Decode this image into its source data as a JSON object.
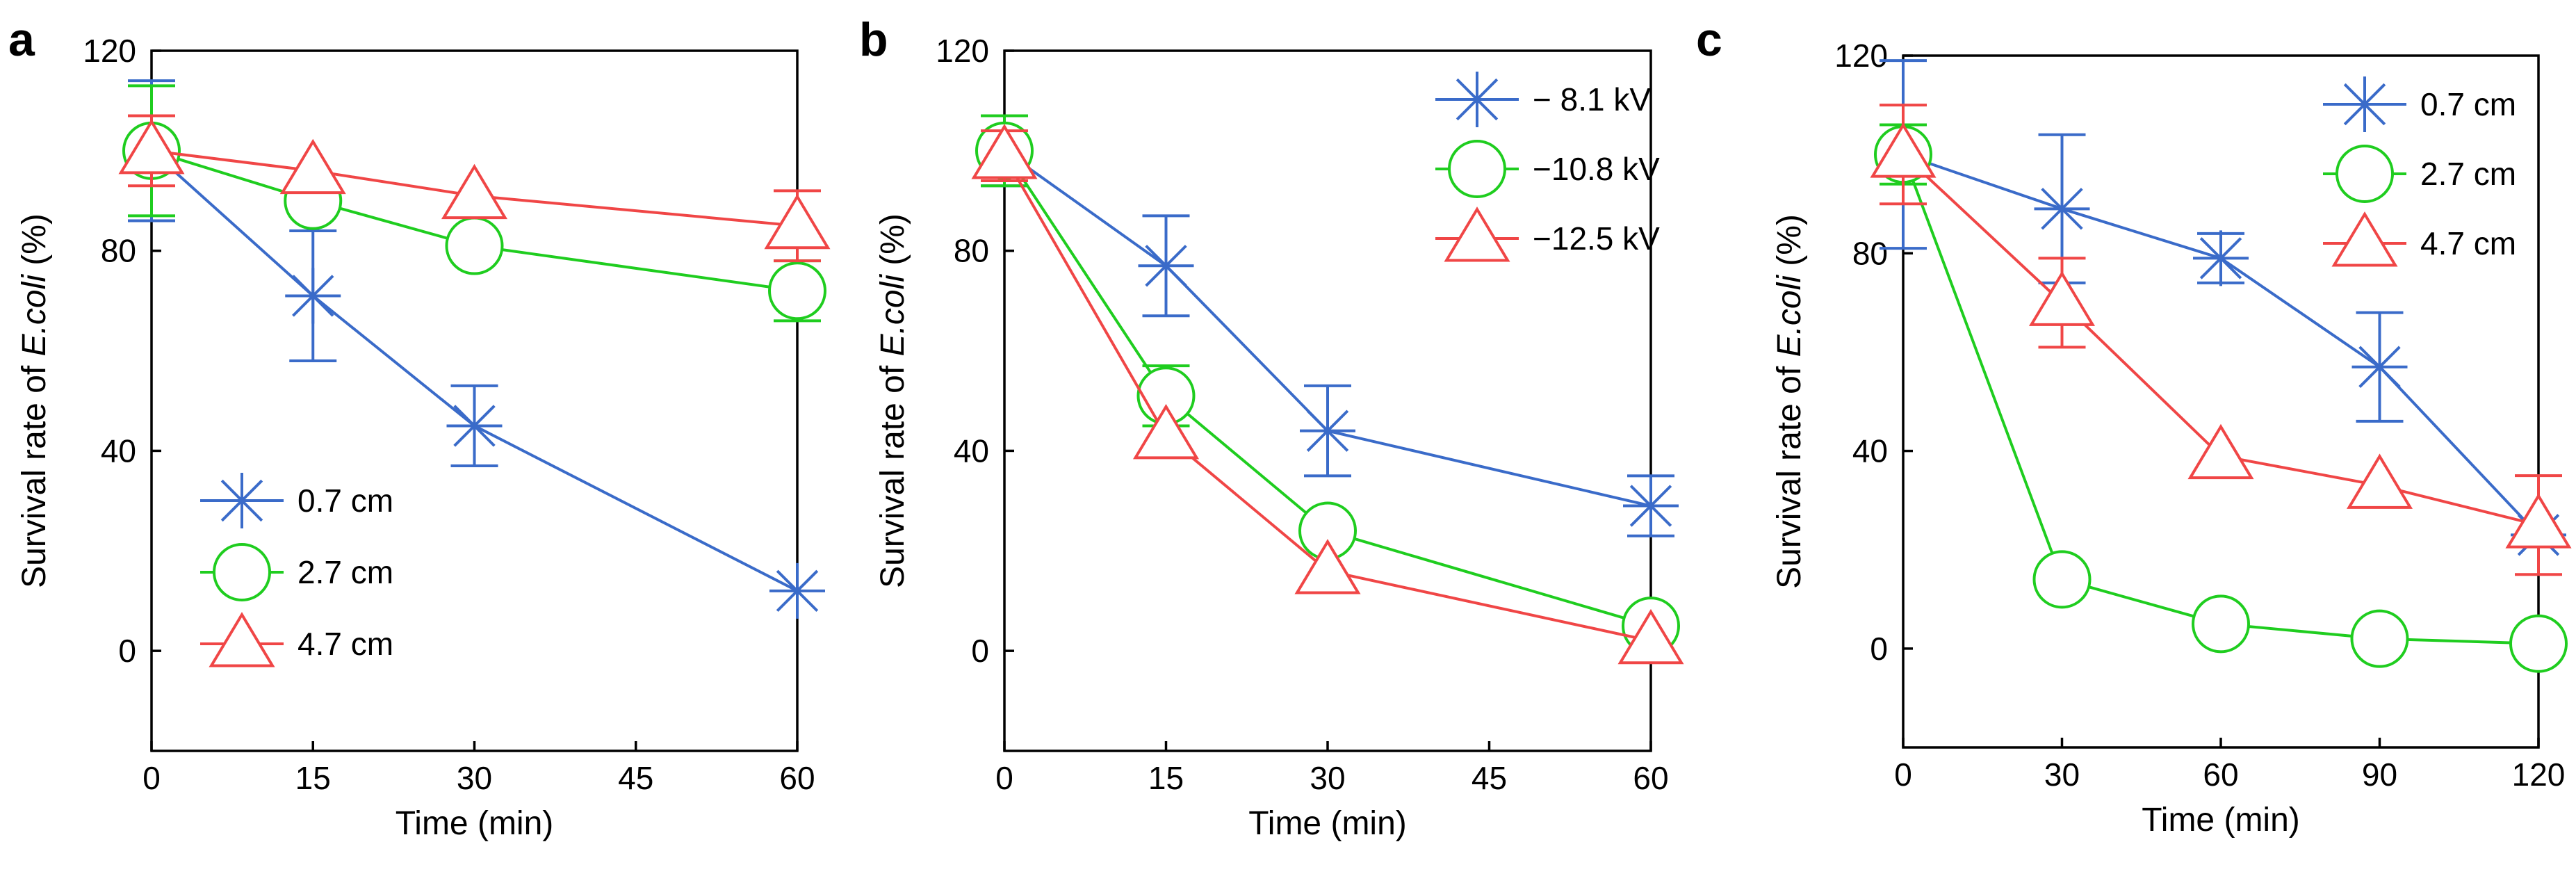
{
  "colors": {
    "blue": "#3a6bc9",
    "green": "#1fcd1f",
    "red": "#f04646"
  },
  "chart_data": [
    {
      "type": "line",
      "panel": "a",
      "xlabel": "Time (min)",
      "ylabel_prefix": "Survival rate of ",
      "ylabel_italic": "E.coli",
      "ylabel_suffix": " (%)",
      "xlim": [
        0,
        60
      ],
      "ylim": [
        -20,
        120
      ],
      "xticks": [
        0,
        15,
        30,
        45,
        60
      ],
      "yticks": [
        0,
        40,
        80,
        120
      ],
      "legend_position": "bottom-left",
      "series": [
        {
          "name": "0.7 cm",
          "color": "blue",
          "marker": "asterisk",
          "x": [
            0,
            15,
            30,
            60
          ],
          "y": [
            100,
            71,
            45,
            12
          ],
          "err": [
            14,
            13,
            8,
            0
          ]
        },
        {
          "name": "2.7 cm",
          "color": "green",
          "marker": "circle",
          "x": [
            0,
            15,
            30,
            60
          ],
          "y": [
            100,
            90,
            81,
            72
          ],
          "err": [
            13,
            0,
            0,
            6
          ]
        },
        {
          "name": "4.7 cm",
          "color": "red",
          "marker": "triangle",
          "x": [
            0,
            15,
            30,
            60
          ],
          "y": [
            100,
            96,
            91,
            85
          ],
          "err": [
            7,
            0,
            0,
            7
          ]
        }
      ]
    },
    {
      "type": "line",
      "panel": "b",
      "xlabel": "Time (min)",
      "ylabel_prefix": "Survival rate of ",
      "ylabel_italic": "E.coli",
      "ylabel_suffix": " (%)",
      "xlim": [
        0,
        60
      ],
      "ylim": [
        -20,
        120
      ],
      "xticks": [
        0,
        15,
        30,
        45,
        60
      ],
      "yticks": [
        0,
        40,
        80,
        120
      ],
      "legend_position": "top-right",
      "series": [
        {
          "name": "− 8.1 kV",
          "color": "blue",
          "marker": "asterisk",
          "x": [
            0,
            15,
            30,
            60
          ],
          "y": [
            100,
            77,
            44,
            29
          ],
          "err": [
            7,
            10,
            9,
            6
          ]
        },
        {
          "name": "−10.8 kV",
          "color": "green",
          "marker": "circle",
          "x": [
            0,
            15,
            30,
            60
          ],
          "y": [
            100,
            51,
            24,
            5
          ],
          "err": [
            7,
            6,
            0,
            0
          ]
        },
        {
          "name": "−12.5 kV",
          "color": "red",
          "marker": "triangle",
          "x": [
            0,
            15,
            30,
            60
          ],
          "y": [
            99,
            43,
            16,
            2
          ],
          "err": [
            5,
            0,
            0,
            0
          ]
        }
      ]
    },
    {
      "type": "line",
      "panel": "c",
      "xlabel": "Time (min)",
      "ylabel_prefix": "Survival rate of ",
      "ylabel_italic": "E.coli",
      "ylabel_suffix": " (%)",
      "xlim": [
        0,
        120
      ],
      "ylim": [
        -20,
        120
      ],
      "xticks": [
        0,
        30,
        60,
        90,
        120
      ],
      "yticks": [
        0,
        40,
        80,
        120
      ],
      "legend_position": "top-right",
      "series": [
        {
          "name": "0.7 cm",
          "color": "blue",
          "marker": "asterisk",
          "x": [
            0,
            30,
            60,
            90,
            120
          ],
          "y": [
            100,
            89,
            79,
            57,
            23
          ],
          "err": [
            19,
            15,
            5,
            11,
            0
          ]
        },
        {
          "name": "2.7 cm",
          "color": "green",
          "marker": "circle",
          "x": [
            0,
            30,
            60,
            90,
            120
          ],
          "y": [
            100,
            14,
            5,
            2,
            1
          ],
          "err": [
            6,
            0,
            0,
            0,
            0
          ]
        },
        {
          "name": "4.7 cm",
          "color": "red",
          "marker": "triangle",
          "x": [
            0,
            30,
            60,
            90,
            120
          ],
          "y": [
            100,
            70,
            39,
            33,
            25
          ],
          "err": [
            10,
            9,
            0,
            0,
            10
          ]
        }
      ]
    }
  ]
}
